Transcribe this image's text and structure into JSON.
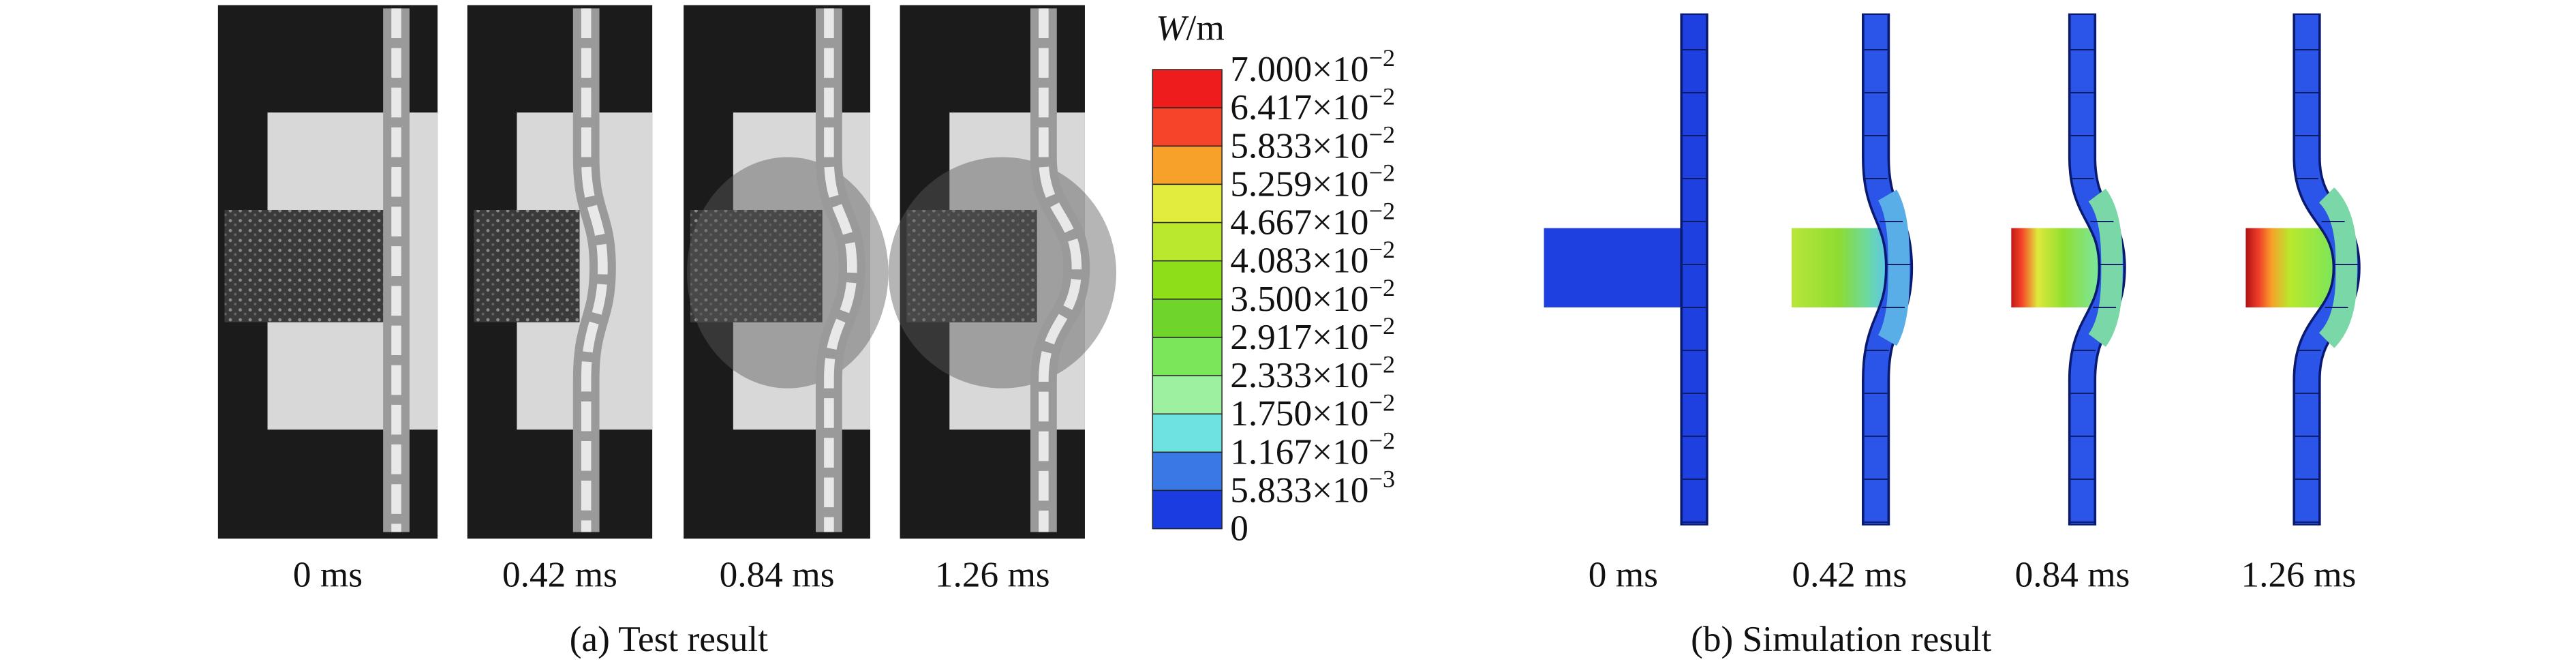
{
  "panel_a": {
    "frames": [
      "0 ms",
      "0.42 ms",
      "0.84 ms",
      "1.26 ms"
    ],
    "caption": "(a) Test result"
  },
  "colorbar": {
    "title_var": "W",
    "title_unit": "/m",
    "levels": [
      {
        "base": "7.000×10",
        "exp": "−2"
      },
      {
        "base": "6.417×10",
        "exp": "−2"
      },
      {
        "base": "5.833×10",
        "exp": "−2"
      },
      {
        "base": "5.259×10",
        "exp": "−2"
      },
      {
        "base": "4.667×10",
        "exp": "−2"
      },
      {
        "base": "4.083×10",
        "exp": "−2"
      },
      {
        "base": "3.500×10",
        "exp": "−2"
      },
      {
        "base": "2.917×10",
        "exp": "−2"
      },
      {
        "base": "2.333×10",
        "exp": "−2"
      },
      {
        "base": "1.750×10",
        "exp": "−2"
      },
      {
        "base": "1.167×10",
        "exp": "−2"
      },
      {
        "base": "5.833×10",
        "exp": "−3"
      },
      {
        "base": "0"
      }
    ],
    "colors": [
      "#ee1c1c",
      "#f5442a",
      "#f7a12a",
      "#e2ec3c",
      "#b9e82c",
      "#8fdf18",
      "#6fd52a",
      "#7ce65a",
      "#9df0a0",
      "#6ee2e0",
      "#3a78e6",
      "#1a3ce0"
    ]
  },
  "panel_b": {
    "frames": [
      "0 ms",
      "0.42 ms",
      "0.84 ms",
      "1.26 ms"
    ],
    "caption": "(b) Simulation result"
  }
}
